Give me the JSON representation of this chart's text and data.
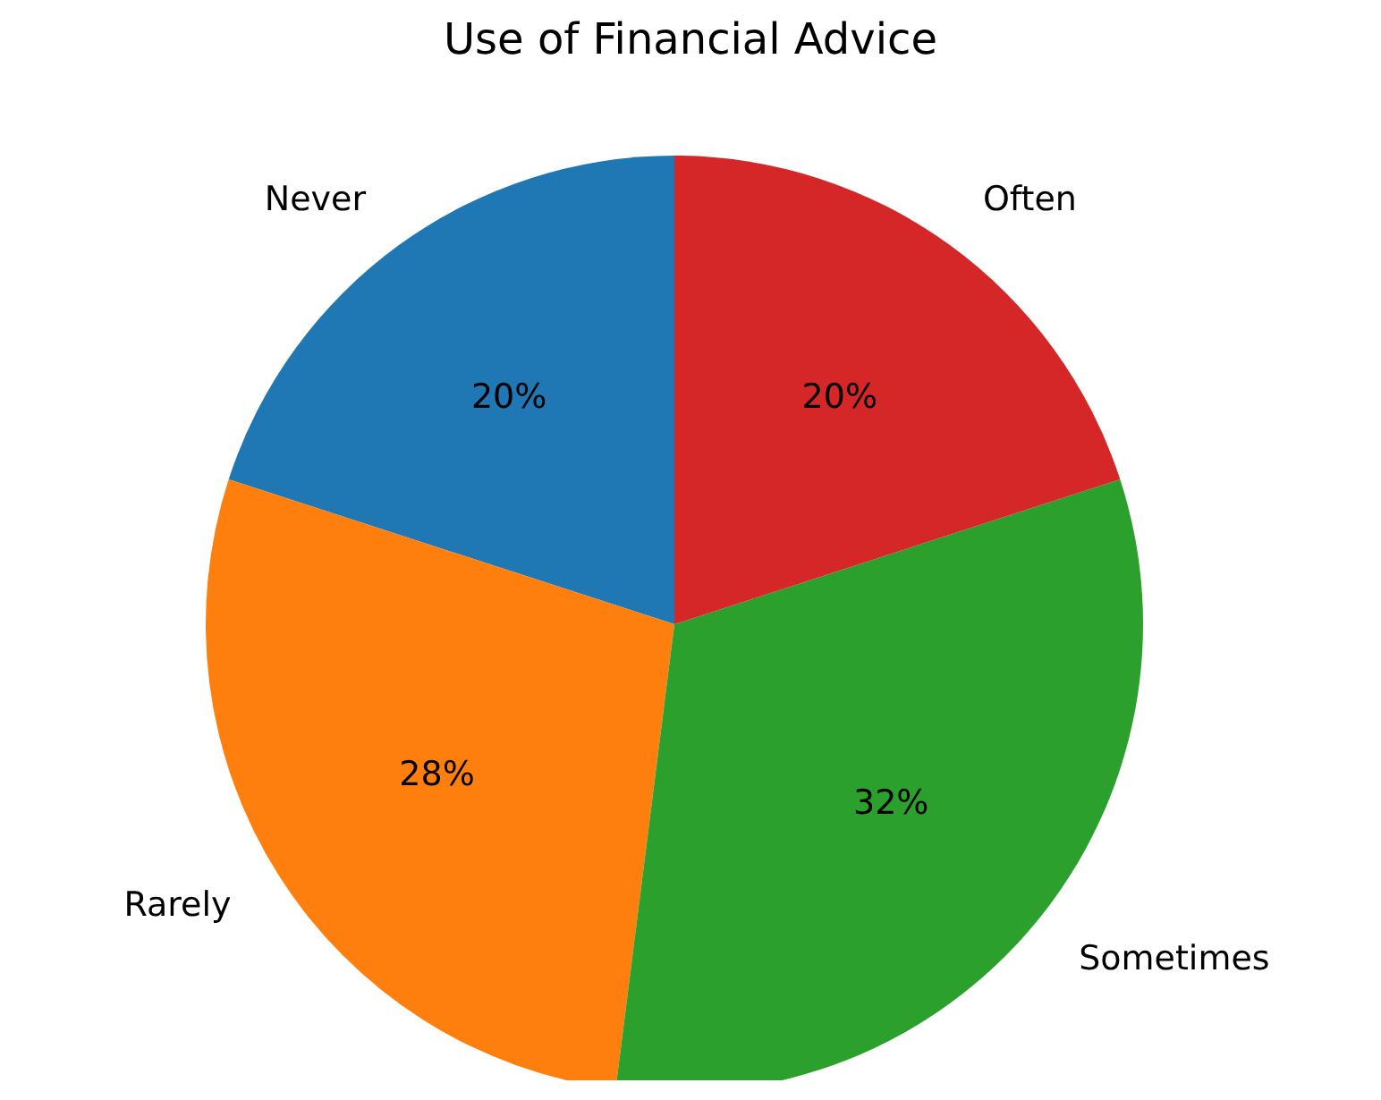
{
  "chart_data": {
    "type": "pie",
    "title": "Use of Financial Advice",
    "categories": [
      "Never",
      "Rarely",
      "Sometimes",
      "Often"
    ],
    "values": [
      20,
      28,
      32,
      20
    ],
    "value_labels": [
      "20%",
      "28%",
      "32%",
      "20%"
    ],
    "colors": [
      "#1f77b4",
      "#ff7f0e",
      "#2ca02c",
      "#d62728"
    ],
    "legend": false
  }
}
